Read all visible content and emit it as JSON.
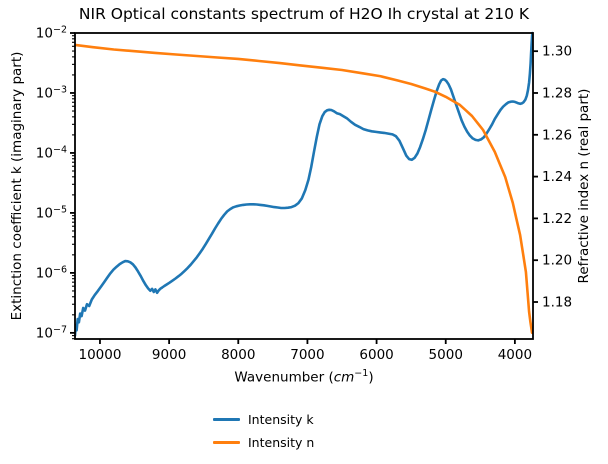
{
  "figure": {
    "title": "NIR Optical constants spectrum of H2O Ih crystal at 210 K",
    "xlabel": {
      "prefix": "Wavenumber (",
      "unit_italic": "cm",
      "exponent": "−1",
      "suffix": ")"
    },
    "ylabel_left": "Extinction coefficient k (imaginary part)",
    "ylabel_right": "Refractive index n (real part)"
  },
  "legend": {
    "items": [
      {
        "label": "Intensity k",
        "color": "#1f77b4"
      },
      {
        "label": "Intensity n",
        "color": "#ff7f0e"
      }
    ]
  },
  "chart_data": {
    "type": "line",
    "title": "NIR Optical constants spectrum of H2O Ih crystal at 210 K",
    "xlabel": "Wavenumber (cm⁻¹)",
    "ylabel_left": "Extinction coefficient k (imaginary part)",
    "ylabel_right": "Refractive index n (real part)",
    "grid": false,
    "legend_position": "below-center",
    "x_axis": {
      "reversed": true,
      "lim": [
        10361,
        3738
      ],
      "ticks": [
        10000,
        9000,
        8000,
        7000,
        6000,
        5000,
        4000
      ]
    },
    "y_left": {
      "scale": "log",
      "lim": [
        7.9e-08,
        0.01
      ],
      "tick_exponents": [
        -2,
        -3,
        -4,
        -5,
        -6,
        -7
      ]
    },
    "y_right": {
      "scale": "linear",
      "lim": [
        1.1623,
        1.3087
      ],
      "ticks": [
        "1.30",
        "1.28",
        "1.26",
        "1.24",
        "1.22",
        "1.20",
        "1.18"
      ]
    },
    "series": [
      {
        "name": "Intensity k",
        "axis": "left",
        "color": "#1f77b4",
        "points": [
          [
            10361,
            9e-08
          ],
          [
            10350,
            1.35e-07
          ],
          [
            10338,
            1.1e-07
          ],
          [
            10322,
            1.7e-07
          ],
          [
            10305,
            1.5e-07
          ],
          [
            10286,
            2.1e-07
          ],
          [
            10265,
            1.9e-07
          ],
          [
            10242,
            2.6e-07
          ],
          [
            10216,
            2.35e-07
          ],
          [
            10188,
            3e-07
          ],
          [
            10155,
            2.8e-07
          ],
          [
            10118,
            3.6e-07
          ],
          [
            10075,
            4.3e-07
          ],
          [
            10030,
            5e-07
          ],
          [
            9985,
            5.9e-07
          ],
          [
            9940,
            7e-07
          ],
          [
            9895,
            8.3e-07
          ],
          [
            9850,
            9.8e-07
          ],
          [
            9805,
            1.13e-06
          ],
          [
            9760,
            1.27e-06
          ],
          [
            9715,
            1.4e-06
          ],
          [
            9672,
            1.5e-06
          ],
          [
            9635,
            1.57e-06
          ],
          [
            9598,
            1.56e-06
          ],
          [
            9562,
            1.5e-06
          ],
          [
            9524,
            1.39e-06
          ],
          [
            9486,
            1.23e-06
          ],
          [
            9448,
            1.05e-06
          ],
          [
            9410,
            8.8e-07
          ],
          [
            9372,
            7.3e-07
          ],
          [
            9336,
            6.2e-07
          ],
          [
            9302,
            5.5e-07
          ],
          [
            9272,
            5.05e-07
          ],
          [
            9246,
            5.4e-07
          ],
          [
            9222,
            4.8e-07
          ],
          [
            9198,
            5.3e-07
          ],
          [
            9174,
            4.65e-07
          ],
          [
            9150,
            5.1e-07
          ],
          [
            9126,
            5.45e-07
          ],
          [
            9100,
            5.7e-07
          ],
          [
            9070,
            6.05e-07
          ],
          [
            9035,
            6.4e-07
          ],
          [
            8995,
            6.85e-07
          ],
          [
            8952,
            7.4e-07
          ],
          [
            8908,
            8.05e-07
          ],
          [
            8864,
            8.8e-07
          ],
          [
            8820,
            9.7e-07
          ],
          [
            8776,
            1.08e-06
          ],
          [
            8732,
            1.21e-06
          ],
          [
            8688,
            1.37e-06
          ],
          [
            8644,
            1.57e-06
          ],
          [
            8600,
            1.82e-06
          ],
          [
            8556,
            2.14e-06
          ],
          [
            8512,
            2.54e-06
          ],
          [
            8468,
            3.05e-06
          ],
          [
            8424,
            3.7e-06
          ],
          [
            8380,
            4.5e-06
          ],
          [
            8336,
            5.5e-06
          ],
          [
            8292,
            6.65e-06
          ],
          [
            8248,
            7.95e-06
          ],
          [
            8204,
            9.3e-06
          ],
          [
            8160,
            1.06e-05
          ],
          [
            8116,
            1.16e-05
          ],
          [
            8072,
            1.24e-05
          ],
          [
            8028,
            1.29e-05
          ],
          [
            7980,
            1.33e-05
          ],
          [
            7930,
            1.36e-05
          ],
          [
            7880,
            1.38e-05
          ],
          [
            7830,
            1.39e-05
          ],
          [
            7780,
            1.39e-05
          ],
          [
            7730,
            1.38e-05
          ],
          [
            7680,
            1.36e-05
          ],
          [
            7630,
            1.34e-05
          ],
          [
            7580,
            1.31e-05
          ],
          [
            7530,
            1.28e-05
          ],
          [
            7480,
            1.25e-05
          ],
          [
            7430,
            1.23e-05
          ],
          [
            7380,
            1.21e-05
          ],
          [
            7330,
            1.21e-05
          ],
          [
            7280,
            1.22e-05
          ],
          [
            7230,
            1.25e-05
          ],
          [
            7180,
            1.32e-05
          ],
          [
            7130,
            1.46e-05
          ],
          [
            7080,
            1.75e-05
          ],
          [
            7030,
            2.4e-05
          ],
          [
            6985,
            3.6e-05
          ],
          [
            6945,
            5.8e-05
          ],
          [
            6905,
            0.000105
          ],
          [
            6865,
            0.000185
          ],
          [
            6825,
            0.0003
          ],
          [
            6785,
            0.00041
          ],
          [
            6750,
            0.00048
          ],
          [
            6715,
            0.000515
          ],
          [
            6685,
            0.000525
          ],
          [
            6655,
            0.00052
          ],
          [
            6615,
            0.000495
          ],
          [
            6575,
            0.00046
          ],
          [
            6530,
            0.000445
          ],
          [
            6480,
            0.00041
          ],
          [
            6430,
            0.00038
          ],
          [
            6370,
            0.00033
          ],
          [
            6310,
            0.000295
          ],
          [
            6250,
            0.000272
          ],
          [
            6190,
            0.00025
          ],
          [
            6130,
            0.000238
          ],
          [
            6070,
            0.00023
          ],
          [
            6010,
            0.000224
          ],
          [
            5950,
            0.00022
          ],
          [
            5890,
            0.000216
          ],
          [
            5830,
            0.00021
          ],
          [
            5770,
            0.000204
          ],
          [
            5720,
            0.00019
          ],
          [
            5670,
            0.00016
          ],
          [
            5620,
            0.00012
          ],
          [
            5570,
            9e-05
          ],
          [
            5530,
            7.9e-05
          ],
          [
            5490,
            7.7e-05
          ],
          [
            5450,
            8.3e-05
          ],
          [
            5410,
            9.8e-05
          ],
          [
            5370,
            0.000125
          ],
          [
            5330,
            0.00017
          ],
          [
            5290,
            0.00024
          ],
          [
            5250,
            0.00035
          ],
          [
            5210,
            0.00052
          ],
          [
            5170,
            0.00076
          ],
          [
            5130,
            0.00108
          ],
          [
            5095,
            0.0014
          ],
          [
            5065,
            0.00162
          ],
          [
            5040,
            0.0017
          ],
          [
            5015,
            0.00167
          ],
          [
            4990,
            0.00158
          ],
          [
            4960,
            0.0014
          ],
          [
            4925,
            0.00115
          ],
          [
            4890,
            0.00088
          ],
          [
            4850,
            0.00064
          ],
          [
            4810,
            0.00047
          ],
          [
            4770,
            0.00035
          ],
          [
            4730,
            0.000275
          ],
          [
            4690,
            0.000225
          ],
          [
            4650,
            0.000195
          ],
          [
            4610,
            0.000175
          ],
          [
            4570,
            0.000165
          ],
          [
            4530,
            0.000162
          ],
          [
            4490,
            0.000168
          ],
          [
            4450,
            0.000182
          ],
          [
            4410,
            0.00021
          ],
          [
            4370,
            0.00025
          ],
          [
            4330,
            0.0003
          ],
          [
            4290,
            0.00037
          ],
          [
            4250,
            0.00044
          ],
          [
            4210,
            0.00052
          ],
          [
            4170,
            0.00059
          ],
          [
            4130,
            0.00065
          ],
          [
            4095,
            0.000695
          ],
          [
            4060,
            0.000715
          ],
          [
            4030,
            0.00072
          ],
          [
            4000,
            0.00071
          ],
          [
            3975,
            0.00069
          ],
          [
            3950,
            0.000672
          ],
          [
            3925,
            0.00066
          ],
          [
            3900,
            0.00067
          ],
          [
            3875,
            0.0007
          ],
          [
            3850,
            0.00077
          ],
          [
            3828,
            0.0009
          ],
          [
            3810,
            0.00112
          ],
          [
            3795,
            0.0015
          ],
          [
            3783,
            0.0021
          ],
          [
            3773,
            0.0031
          ],
          [
            3765,
            0.0046
          ],
          [
            3758,
            0.0066
          ],
          [
            3751,
            0.009
          ],
          [
            3746,
            0.01
          ]
        ]
      },
      {
        "name": "Intensity n",
        "axis": "right",
        "color": "#ff7f0e",
        "points": [
          [
            10361,
            1.303
          ],
          [
            10100,
            1.3019
          ],
          [
            9800,
            1.3008
          ],
          [
            9500,
            1.3
          ],
          [
            9200,
            1.2992
          ],
          [
            8900,
            1.2984
          ],
          [
            8600,
            1.2977
          ],
          [
            8300,
            1.297
          ],
          [
            8000,
            1.2963
          ],
          [
            7700,
            1.2953
          ],
          [
            7400,
            1.2943
          ],
          [
            7100,
            1.2932
          ],
          [
            6800,
            1.2921
          ],
          [
            6500,
            1.291
          ],
          [
            6200,
            1.2894
          ],
          [
            5950,
            1.2881
          ],
          [
            5700,
            1.286
          ],
          [
            5500,
            1.2843
          ],
          [
            5300,
            1.2822
          ],
          [
            5150,
            1.2805
          ],
          [
            5000,
            1.2782
          ],
          [
            4900,
            1.2763
          ],
          [
            4800,
            1.2744
          ],
          [
            4710,
            1.2717
          ],
          [
            4620,
            1.269
          ],
          [
            4540,
            1.2657
          ],
          [
            4460,
            1.2623
          ],
          [
            4375,
            1.2571
          ],
          [
            4290,
            1.2518
          ],
          [
            4215,
            1.2458
          ],
          [
            4140,
            1.2398
          ],
          [
            4085,
            1.2336
          ],
          [
            4030,
            1.2274
          ],
          [
            3978,
            1.2198
          ],
          [
            3925,
            1.2121
          ],
          [
            3880,
            1.2027
          ],
          [
            3840,
            1.1944
          ],
          [
            3818,
            1.1849
          ],
          [
            3795,
            1.1753
          ],
          [
            3775,
            1.1705
          ],
          [
            3760,
            1.167
          ],
          [
            3752,
            1.1653
          ]
        ]
      }
    ]
  }
}
